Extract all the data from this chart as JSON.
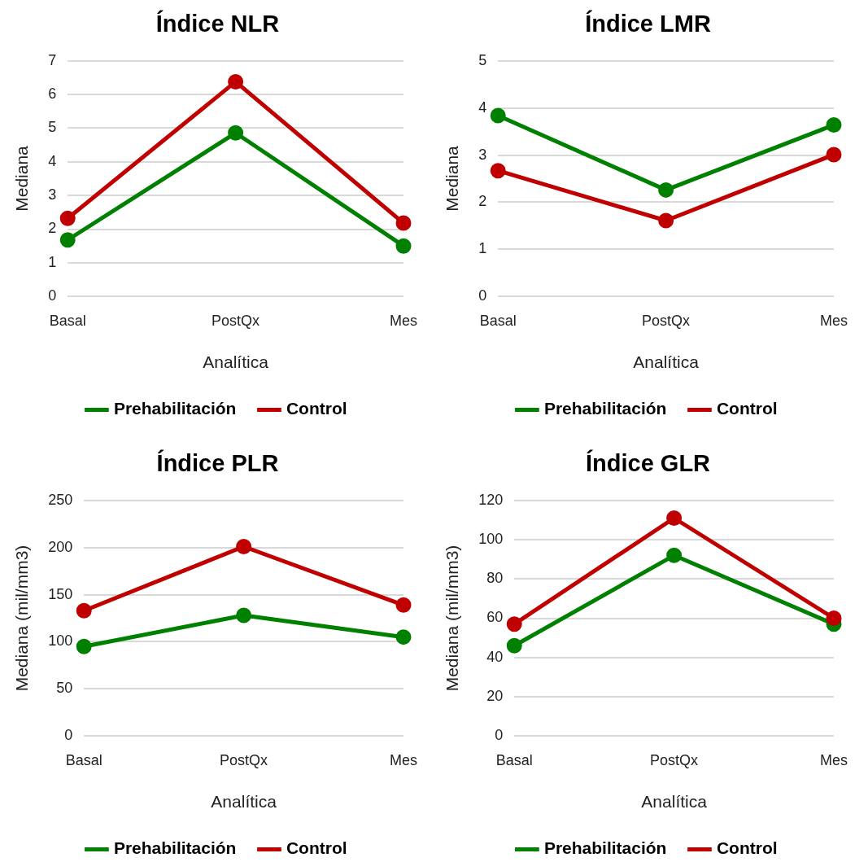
{
  "chart_data": [
    {
      "type": "line",
      "title": "Índice NLR",
      "xlabel": "Analítica",
      "ylabel": "Mediana",
      "categories": [
        "Basal",
        "PostQx",
        "Mes"
      ],
      "ylim": [
        0,
        7
      ],
      "yticks": [
        0,
        1,
        2,
        3,
        4,
        5,
        6,
        7
      ],
      "grid": "y",
      "legend": "bottom",
      "marker": "circle",
      "series": [
        {
          "name": "Prehabilitación",
          "color": "#008000",
          "values": [
            1.68,
            4.86,
            1.5
          ]
        },
        {
          "name": "Control",
          "color": "#c00000",
          "values": [
            2.32,
            6.38,
            2.18
          ]
        }
      ]
    },
    {
      "type": "line",
      "title": "Índice LMR",
      "xlabel": "Analítica",
      "ylabel": "Mediana",
      "categories": [
        "Basal",
        "PostQx",
        "Mes"
      ],
      "ylim": [
        0,
        5
      ],
      "yticks": [
        0,
        1,
        2,
        3,
        4,
        5
      ],
      "grid": "y",
      "legend": "bottom",
      "marker": "circle",
      "series": [
        {
          "name": "Prehabilitación",
          "color": "#008000",
          "values": [
            3.84,
            2.26,
            3.64
          ]
        },
        {
          "name": "Control",
          "color": "#c00000",
          "values": [
            2.67,
            1.61,
            3.01
          ]
        }
      ]
    },
    {
      "type": "line",
      "title": "Índice PLR",
      "xlabel": "Analítica",
      "ylabel": "Mediana (mil/mm3)",
      "categories": [
        "Basal",
        "PostQx",
        "Mes"
      ],
      "ylim": [
        0,
        250
      ],
      "yticks": [
        0,
        50,
        100,
        150,
        200,
        250
      ],
      "grid": "y",
      "legend": "bottom",
      "marker": "circle",
      "series": [
        {
          "name": "Prehabilitación",
          "color": "#008000",
          "values": [
            95,
            128,
            105
          ]
        },
        {
          "name": "Control",
          "color": "#c00000",
          "values": [
            133,
            201,
            139
          ]
        }
      ]
    },
    {
      "type": "line",
      "title": "Índice GLR",
      "xlabel": "Analítica",
      "ylabel": "Mediana (mil/mm3)",
      "categories": [
        "Basal",
        "PostQx",
        "Mes"
      ],
      "ylim": [
        0,
        120
      ],
      "yticks": [
        0,
        20,
        40,
        60,
        80,
        100,
        120
      ],
      "grid": "y",
      "legend": "bottom",
      "marker": "circle",
      "series": [
        {
          "name": "Prehabilitación",
          "color": "#008000",
          "values": [
            46,
            92,
            57
          ]
        },
        {
          "name": "Control",
          "color": "#c00000",
          "values": [
            57,
            111,
            60
          ]
        }
      ]
    }
  ]
}
